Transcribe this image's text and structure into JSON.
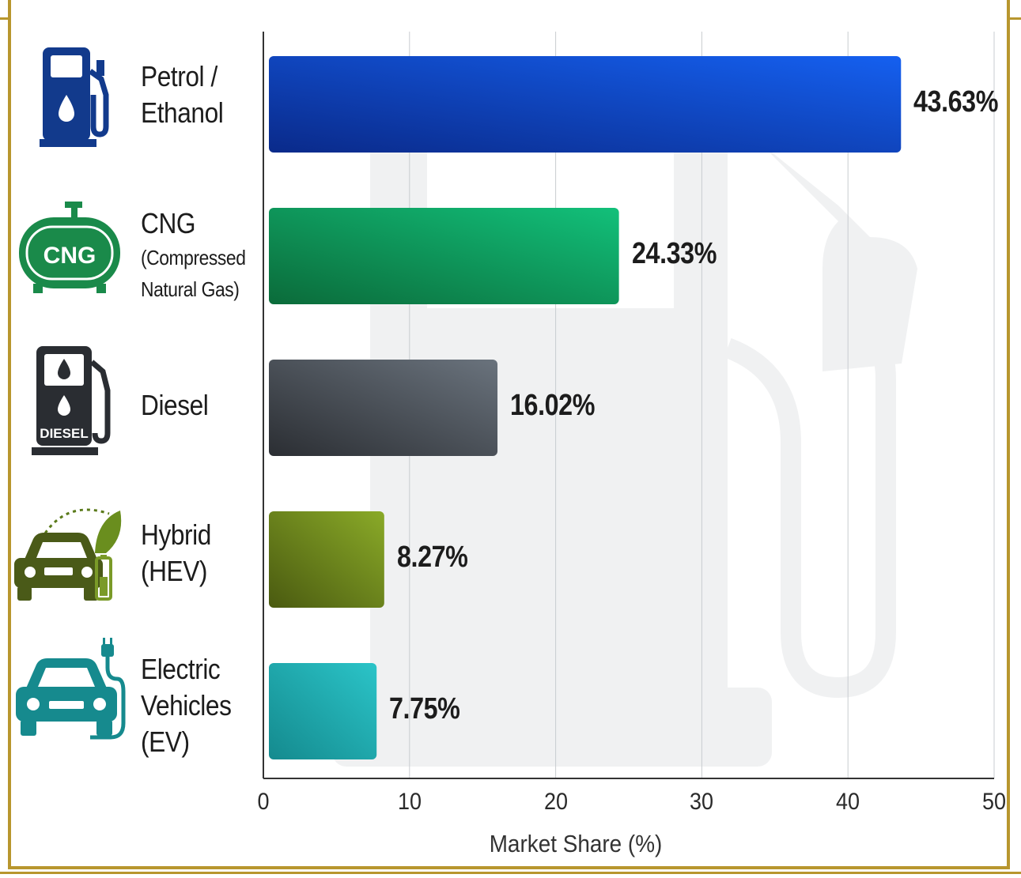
{
  "chart_data": {
    "type": "bar",
    "orientation": "horizontal",
    "categories": [
      {
        "line1": "Petrol /",
        "line2": "Ethanol",
        "line3": ""
      },
      {
        "line1": "CNG",
        "line2": "(Compressed",
        "line3": "Natural Gas)"
      },
      {
        "line1": "Diesel",
        "line2": "",
        "line3": ""
      },
      {
        "line1": "Hybrid",
        "line2": "(HEV)",
        "line3": ""
      },
      {
        "line1": "Electric",
        "line2": "Vehicles",
        "line3": "(EV)"
      }
    ],
    "values": [
      43.63,
      24.33,
      16.02,
      8.27,
      7.75
    ],
    "value_labels": [
      "43.63%",
      "24.33%",
      "16.02%",
      "8.27%",
      "7.75%"
    ],
    "xlabel": "Market Share (%)",
    "xlim": [
      0,
      50
    ],
    "xticks": [
      "0",
      "10",
      "20",
      "30",
      "40",
      "50"
    ],
    "grid": "vertical",
    "colors": [
      [
        "#0a2a8a",
        "#1560f0"
      ],
      [
        "#0b6b3a",
        "#12c07a"
      ],
      [
        "#2b2e33",
        "#6a737d"
      ],
      [
        "#4a5a10",
        "#8aaa28"
      ],
      [
        "#148a8e",
        "#2bc4c8"
      ]
    ]
  },
  "icons": [
    "fuel-pump-icon",
    "cng-cylinder-icon",
    "diesel-pump-icon",
    "hybrid-car-icon",
    "electric-car-icon"
  ],
  "icon_text": {
    "cng": "CNG",
    "diesel": "DIESEL"
  }
}
